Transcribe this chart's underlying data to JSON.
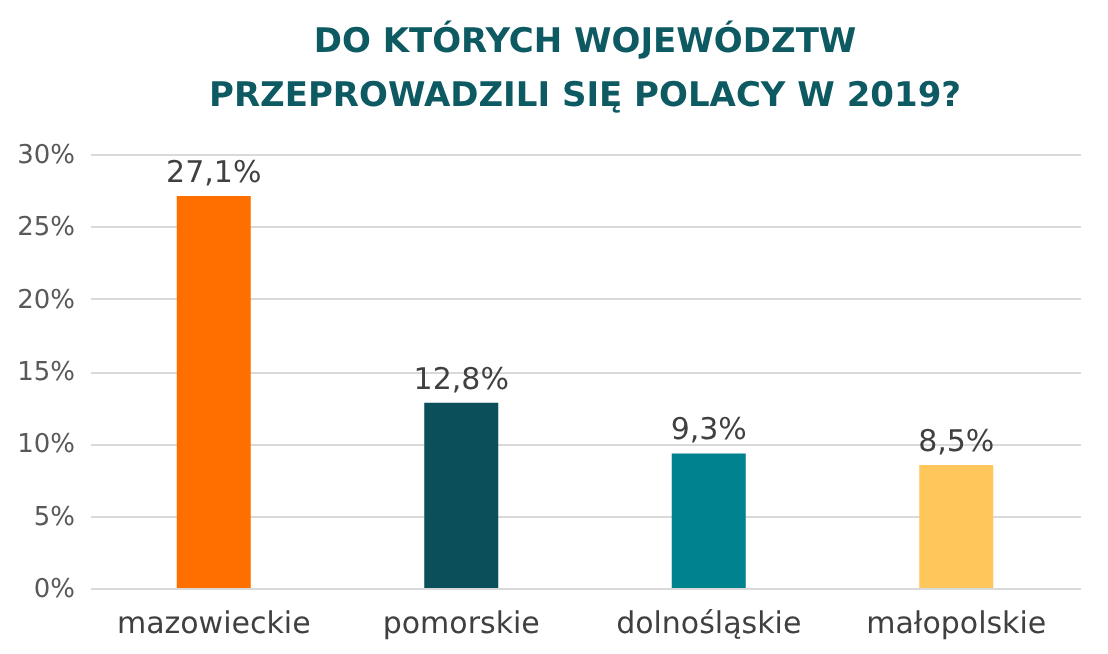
{
  "chart_data": {
    "type": "bar",
    "title": "DO KTÓRYCH WOJEWÓDZTW\nPRZEPROWADZILI SIĘ POLACY W 2019?",
    "categories": [
      "mazowieckie",
      "pomorskie",
      "dolnośląskie",
      "małopolskie"
    ],
    "values": [
      27.1,
      12.8,
      9.3,
      8.5
    ],
    "colors": [
      "#ff6f00",
      "#0b4f5a",
      "#00838f",
      "#ffc65c"
    ],
    "value_labels": [
      "27,1%",
      "12,8%",
      "9,3%",
      "8,5%"
    ],
    "ylim": [
      0,
      30
    ],
    "yticks": [
      {
        "value": 0,
        "label": "0%"
      },
      {
        "value": 5,
        "label": "5%"
      },
      {
        "value": 10,
        "label": "10%"
      },
      {
        "value": 15,
        "label": "15%"
      },
      {
        "value": 20,
        "label": "20%"
      },
      {
        "value": 25,
        "label": "25%"
      },
      {
        "value": 30,
        "label": "30%"
      }
    ],
    "grid": "y"
  }
}
